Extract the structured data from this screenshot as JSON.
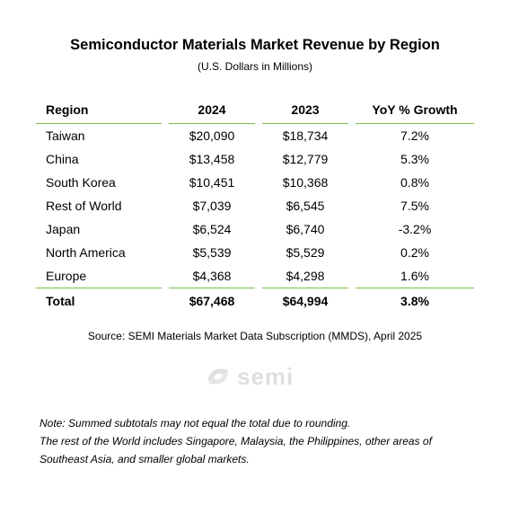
{
  "title": "Semiconductor Materials Market Revenue by Region",
  "subtitle": "(U.S. Dollars in Millions)",
  "table": {
    "headers": [
      "Region",
      "2024",
      "2023",
      "YoY % Growth"
    ],
    "rows": [
      [
        "Taiwan",
        "$20,090",
        "$18,734",
        "7.2%"
      ],
      [
        "China",
        "$13,458",
        "$12,779",
        "5.3%"
      ],
      [
        "South Korea",
        "$10,451",
        "$10,368",
        "0.8%"
      ],
      [
        "Rest of World",
        "$7,039",
        "$6,545",
        "7.5%"
      ],
      [
        "Japan",
        "$6,524",
        "$6,740",
        "-3.2%"
      ],
      [
        "North America",
        "$5,539",
        "$5,529",
        "0.2%"
      ],
      [
        "Europe",
        "$4,368",
        "$4,298",
        "1.6%"
      ]
    ],
    "total": [
      "Total",
      "$67,468",
      "$64,994",
      "3.8%"
    ]
  },
  "source": "Source: SEMI Materials Market Data Subscription (MMDS), April 2025",
  "logo_text": "semi",
  "notes": [
    "Note: Summed subtotals may not equal the total due to rounding.",
    "The rest of the World includes Singapore, Malaysia, the Philippines, other areas of Southeast Asia, and smaller global markets."
  ],
  "colors": {
    "rule_green": "#7cbb4a"
  }
}
